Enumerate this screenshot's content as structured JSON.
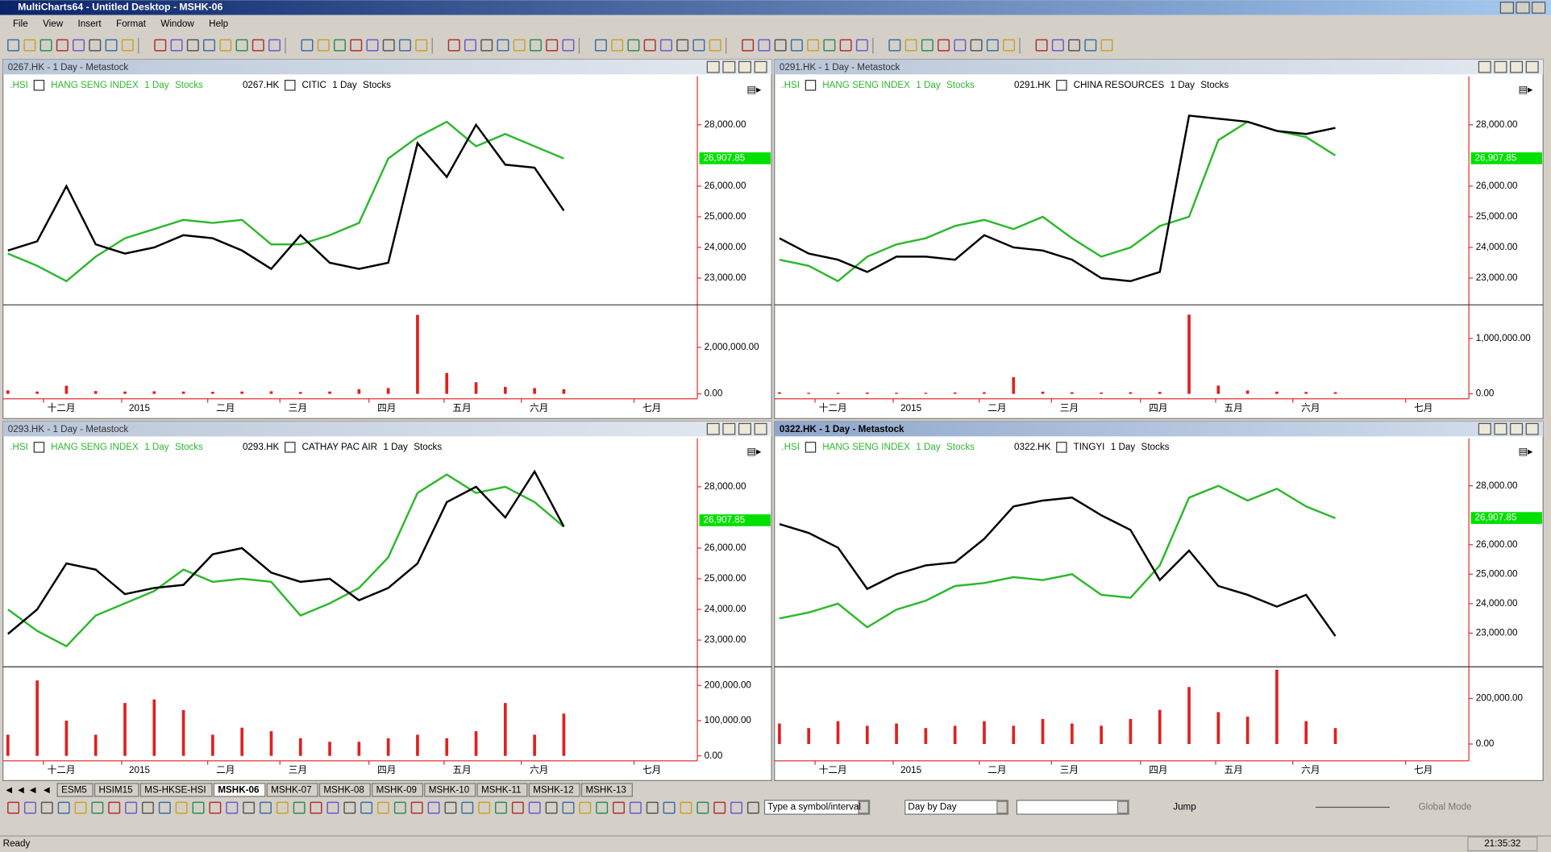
{
  "window_title": "MultiCharts64 - Untitled Desktop - MSHK-06",
  "menu": [
    "File",
    "View",
    "Insert",
    "Format",
    "Window",
    "Help"
  ],
  "panes": [
    {
      "title": "0267.HK - 1 Day - Metastock",
      "active": false,
      "legend": {
        "index_symbol": ".HSI",
        "index_name": "HANG SENG INDEX",
        "index_res": "1 Day",
        "index_type": "Stocks",
        "symbol": "0267.HK",
        "name": "CITIC",
        "res": "1 Day",
        "type": "Stocks"
      },
      "ylim": [
        22160,
        29580
      ],
      "yticks": [
        {
          "value": 28000,
          "label": "28,000.00"
        },
        {
          "value": 26000,
          "label": "26,000.00"
        },
        {
          "value": 25000,
          "label": "25,000.00"
        },
        {
          "value": 24000,
          "label": "24,000.00"
        },
        {
          "value": 23000,
          "label": "23,000.00"
        }
      ],
      "price_tag": {
        "value": 26907.85,
        "label": "26,907.85"
      },
      "vlim": [
        0,
        3745000
      ],
      "vticks": [
        {
          "value": 2000000,
          "label": "2,000,000.00"
        },
        {
          "value": 0,
          "label": "0.00"
        }
      ],
      "months": [
        "十二月",
        "2015",
        "二月",
        "三月",
        "四月",
        "五月",
        "六月",
        "七月"
      ],
      "stock": [
        23900,
        24200,
        26000,
        24100,
        23800,
        24000,
        24400,
        24300,
        23900,
        23300,
        24400,
        23500,
        23300,
        23500,
        27400,
        26300,
        28000,
        26700,
        26600,
        25200
      ],
      "index": [
        23800,
        23400,
        22900,
        23700,
        24300,
        24600,
        24900,
        24800,
        24900,
        24100,
        24100,
        24400,
        24800,
        26900,
        27600,
        28100,
        27300,
        27700,
        27300,
        26900
      ],
      "volume": [
        150000,
        100000,
        350000,
        120000,
        100000,
        110000,
        100000,
        90000,
        100000,
        110000,
        80000,
        100000,
        200000,
        250000,
        3400000,
        900000,
        500000,
        300000,
        250000,
        200000
      ]
    },
    {
      "title": "0291.HK - 1 Day - Metastock",
      "active": false,
      "legend": {
        "index_symbol": ".HSI",
        "index_name": "HANG SENG INDEX",
        "index_res": "1 Day",
        "index_type": "Stocks",
        "symbol": "0291.HK",
        "name": "CHINA RESOURCES",
        "res": "1 Day",
        "type": "Stocks"
      },
      "ylim": [
        22160,
        29580
      ],
      "yticks": [
        {
          "value": 28000,
          "label": "28,000.00"
        },
        {
          "value": 26000,
          "label": "26,000.00"
        },
        {
          "value": 25000,
          "label": "25,000.00"
        },
        {
          "value": 24000,
          "label": "24,000.00"
        },
        {
          "value": 23000,
          "label": "23,000.00"
        }
      ],
      "price_tag": {
        "value": 26907.85,
        "label": "26,907.85"
      },
      "vlim": [
        0,
        1571000
      ],
      "vticks": [
        {
          "value": 1000000,
          "label": "1,000,000.00"
        },
        {
          "value": 0,
          "label": "0.00"
        }
      ],
      "months": [
        "十二月",
        "2015",
        "二月",
        "三月",
        "四月",
        "五月",
        "六月",
        "七月"
      ],
      "stock": [
        24300,
        23800,
        23600,
        23200,
        23700,
        23700,
        23600,
        24400,
        24000,
        23900,
        23600,
        23000,
        22900,
        23200,
        28300,
        28200,
        28100,
        27800,
        27700,
        27900
      ],
      "index": [
        23600,
        23400,
        22900,
        23700,
        24100,
        24300,
        24700,
        24900,
        24600,
        25000,
        24300,
        23700,
        24000,
        24700,
        25000,
        27500,
        28100,
        27800,
        27600,
        27000
      ],
      "volume": [
        30000,
        20000,
        20000,
        25000,
        20000,
        20000,
        25000,
        30000,
        300000,
        40000,
        30000,
        25000,
        30000,
        35000,
        1430000,
        150000,
        60000,
        40000,
        35000,
        30000
      ]
    },
    {
      "title": "0293.HK - 1 Day - Metastock",
      "active": false,
      "legend": {
        "index_symbol": ".HSI",
        "index_name": "HANG SENG INDEX",
        "index_res": "1 Day",
        "index_type": "Stocks",
        "symbol": "0293.HK",
        "name": "CATHAY PAC AIR",
        "res": "1 Day",
        "type": "Stocks"
      },
      "ylim": [
        22160,
        29580
      ],
      "yticks": [
        {
          "value": 28000,
          "label": "28,000.00"
        },
        {
          "value": 26000,
          "label": "26,000.00"
        },
        {
          "value": 25000,
          "label": "25,000.00"
        },
        {
          "value": 24000,
          "label": "24,000.00"
        },
        {
          "value": 23000,
          "label": "23,000.00"
        }
      ],
      "price_tag": {
        "value": 26907.85,
        "label": "26,907.85"
      },
      "vlim": [
        0,
        247000
      ],
      "vticks": [
        {
          "value": 200000,
          "label": "200,000.00"
        },
        {
          "value": 100000,
          "label": "100,000.00"
        },
        {
          "value": 0,
          "label": "0.00"
        }
      ],
      "months": [
        "十二月",
        "2015",
        "二月",
        "三月",
        "四月",
        "五月",
        "六月",
        "七月"
      ],
      "stock": [
        23200,
        24000,
        25500,
        25300,
        24500,
        24700,
        24800,
        25800,
        26000,
        25200,
        24900,
        25000,
        24300,
        24700,
        25500,
        27500,
        28000,
        27000,
        28500,
        26700
      ],
      "index": [
        24000,
        23300,
        22800,
        23800,
        24200,
        24600,
        25300,
        24900,
        25000,
        24900,
        23800,
        24200,
        24700,
        25700,
        27800,
        28400,
        27800,
        28000,
        27500,
        26700
      ],
      "volume": [
        60000,
        214000,
        100000,
        60000,
        150000,
        160000,
        130000,
        60000,
        80000,
        70000,
        50000,
        40000,
        40000,
        50000,
        60000,
        50000,
        70000,
        150000,
        60000,
        120000
      ]
    },
    {
      "title": "0322.HK - 1 Day - Metastock",
      "active": true,
      "legend": {
        "index_symbol": ".HSI",
        "index_name": "HANG SENG INDEX",
        "index_res": "1 Day",
        "index_type": "Stocks",
        "symbol": "0322.HK",
        "name": "TINGYI",
        "res": "1 Day",
        "type": "Stocks"
      },
      "ylim": [
        21890,
        29610
      ],
      "yticks": [
        {
          "value": 28000,
          "label": "28,000.00"
        },
        {
          "value": 26000,
          "label": "26,000.00"
        },
        {
          "value": 25000,
          "label": "25,000.00"
        },
        {
          "value": 24000,
          "label": "24,000.00"
        },
        {
          "value": 23000,
          "label": "23,000.00"
        }
      ],
      "price_tag": {
        "value": 26907.85,
        "label": "26,907.85"
      },
      "vlim": [
        -52000,
        330000
      ],
      "vticks": [
        {
          "value": 200000,
          "label": "200,000.00"
        },
        {
          "value": 0,
          "label": "0.00"
        }
      ],
      "months": [
        "十二月",
        "2015",
        "二月",
        "三月",
        "四月",
        "五月",
        "六月",
        "七月"
      ],
      "stock": [
        26700,
        26400,
        25900,
        24500,
        25000,
        25300,
        25400,
        26200,
        27300,
        27500,
        27600,
        27000,
        26500,
        24800,
        25800,
        24600,
        24300,
        23900,
        24300,
        22900
      ],
      "index": [
        23500,
        23700,
        24000,
        23200,
        23800,
        24100,
        24600,
        24700,
        24900,
        24800,
        25000,
        24300,
        24200,
        25300,
        27600,
        28000,
        27500,
        27900,
        27300,
        26900
      ],
      "volume": [
        90000,
        70000,
        100000,
        80000,
        90000,
        70000,
        80000,
        100000,
        80000,
        110000,
        90000,
        80000,
        110000,
        150000,
        250000,
        140000,
        120000,
        326000,
        100000,
        70000
      ]
    }
  ],
  "tabs": [
    "ESM5",
    "HSIM15",
    "MS-HKSE-HSI",
    "MSHK-06",
    "MSHK-07",
    "MSHK-08",
    "MSHK-09",
    "MSHK-10",
    "MSHK-11",
    "MSHK-12",
    "MSHK-13"
  ],
  "active_tab": "MSHK-06",
  "bottom_bar": {
    "symbol_box": "Type a symbol/interval",
    "mode_box": "Day by Day",
    "jump": "Jump",
    "global": "Global Mode"
  },
  "status": {
    "text": "Ready",
    "time": "21:35:32"
  }
}
